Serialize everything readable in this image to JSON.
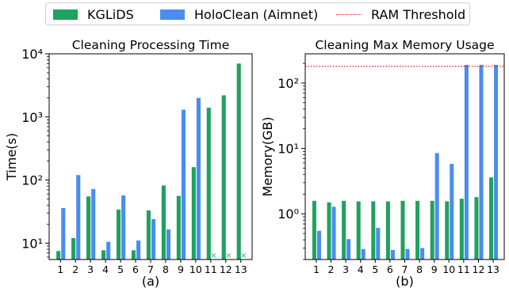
{
  "legend": {
    "kglids": "KGLiDS",
    "holoclean": "HoloClean (Aimnet)",
    "threshold": "RAM Threshold"
  },
  "colors": {
    "kglids": "#1ea25f",
    "holoclean": "#4a8df0",
    "threshold": "#e41a1c",
    "missing_marker": "#3aa88c"
  },
  "chart_data": [
    {
      "type": "bar",
      "title": "Cleaning Processing Time",
      "xlabel": "(a)",
      "ylabel": "Time(s)",
      "yscale": "log",
      "ylim": [
        5.5,
        10000
      ],
      "yticks": [
        {
          "value": 10,
          "label": "10¹"
        },
        {
          "value": 100,
          "label": "10²"
        },
        {
          "value": 1000,
          "label": "10³"
        },
        {
          "value": 10000,
          "label": "10⁴"
        }
      ],
      "categories": [
        "1",
        "2",
        "3",
        "4",
        "5",
        "6",
        "7",
        "8",
        "9",
        "10",
        "11",
        "12",
        "13"
      ],
      "series": [
        {
          "name": "KGLiDS",
          "values": [
            7.5,
            12,
            55,
            7.7,
            34,
            7.7,
            33,
            82,
            56,
            160,
            1400,
            2200,
            7000
          ]
        },
        {
          "name": "HoloClean (Aimnet)",
          "values": [
            36,
            120,
            72,
            10.5,
            57,
            11,
            24,
            16.5,
            1300,
            2000,
            null,
            null,
            null
          ]
        }
      ],
      "missing_marker": "×",
      "missing_for": "HoloClean (Aimnet)",
      "grid": false
    },
    {
      "type": "bar",
      "title": "Cleaning Max Memory Usage",
      "xlabel": "(b)",
      "ylabel": "Memory(GB)",
      "yscale": "log",
      "ylim": [
        0.2,
        280
      ],
      "yticks": [
        {
          "value": 1,
          "label": "10⁰"
        },
        {
          "value": 10,
          "label": "10¹"
        },
        {
          "value": 100,
          "label": "10²"
        }
      ],
      "categories": [
        "1",
        "2",
        "3",
        "4",
        "5",
        "6",
        "7",
        "8",
        "9",
        "10",
        "11",
        "12",
        "13"
      ],
      "series": [
        {
          "name": "KGLiDS",
          "values": [
            1.58,
            1.5,
            1.58,
            1.55,
            1.55,
            1.55,
            1.58,
            1.58,
            1.58,
            1.55,
            1.7,
            1.8,
            3.6
          ]
        },
        {
          "name": "HoloClean (Aimnet)",
          "values": [
            0.55,
            1.28,
            0.41,
            0.29,
            0.61,
            0.28,
            0.29,
            0.3,
            8.5,
            5.8,
            190,
            190,
            190
          ]
        }
      ],
      "threshold": {
        "name": "RAM Threshold",
        "value": 180
      },
      "grid": false
    }
  ]
}
